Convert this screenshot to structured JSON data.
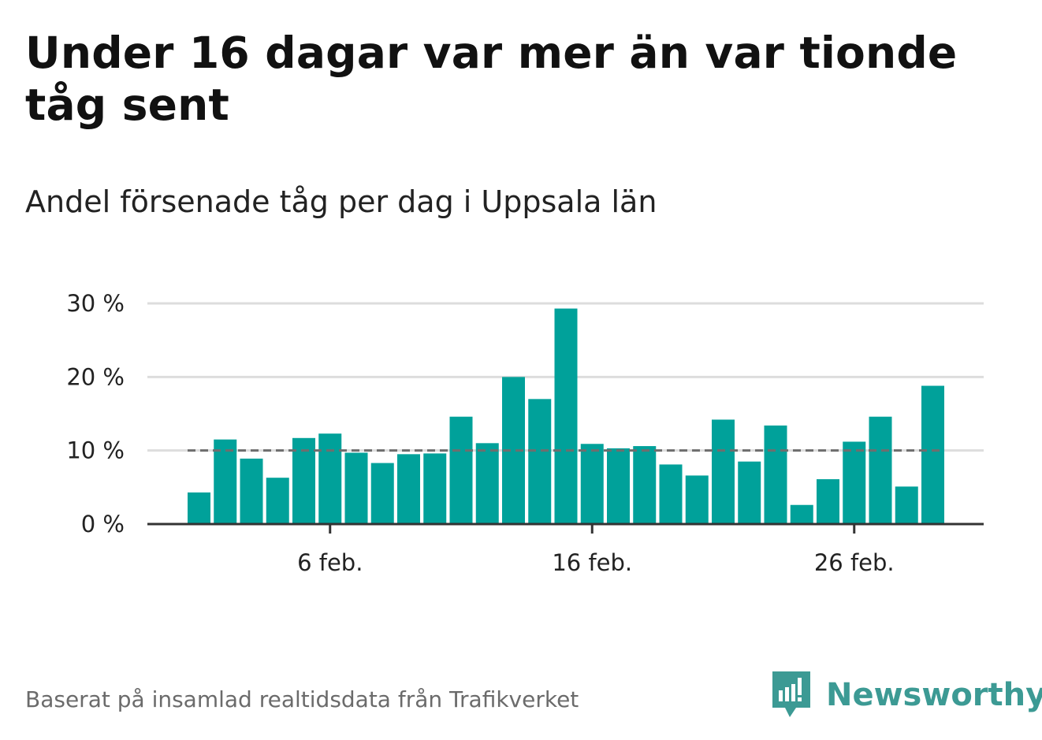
{
  "header": {
    "title": "Under 16 dagar var mer än var tionde tåg sent",
    "subtitle": "Andel försenade tåg per dag i Uppsala län"
  },
  "chart_data": {
    "type": "bar",
    "x_tick_labels": [
      "6 feb.",
      "16 feb.",
      "26 feb."
    ],
    "y_tick_labels": [
      "0 %",
      "10 %",
      "20 %",
      "30 %"
    ],
    "ylim": [
      0,
      30
    ],
    "yticks": [
      0,
      10,
      20,
      30
    ],
    "reference_line": 10,
    "grid": true,
    "bar_color": "#00a19a",
    "reference_line_color": "#6e6e6e",
    "series": [
      {
        "values": [
          4.3,
          11.5,
          8.9,
          6.3,
          11.7,
          12.3,
          9.7,
          8.3,
          9.5,
          9.6,
          14.6,
          11.0,
          20.0,
          17.0,
          29.3,
          10.9,
          10.3,
          10.6,
          8.1,
          6.6,
          14.2,
          8.5,
          13.4,
          2.6,
          6.1,
          11.2,
          14.6,
          5.1,
          18.8
        ]
      }
    ]
  },
  "footer": {
    "source": "Baserat på insamlad realtidsdata från Trafikverket",
    "brand": "Newsworthy",
    "brand_color": "#3c9a94"
  }
}
